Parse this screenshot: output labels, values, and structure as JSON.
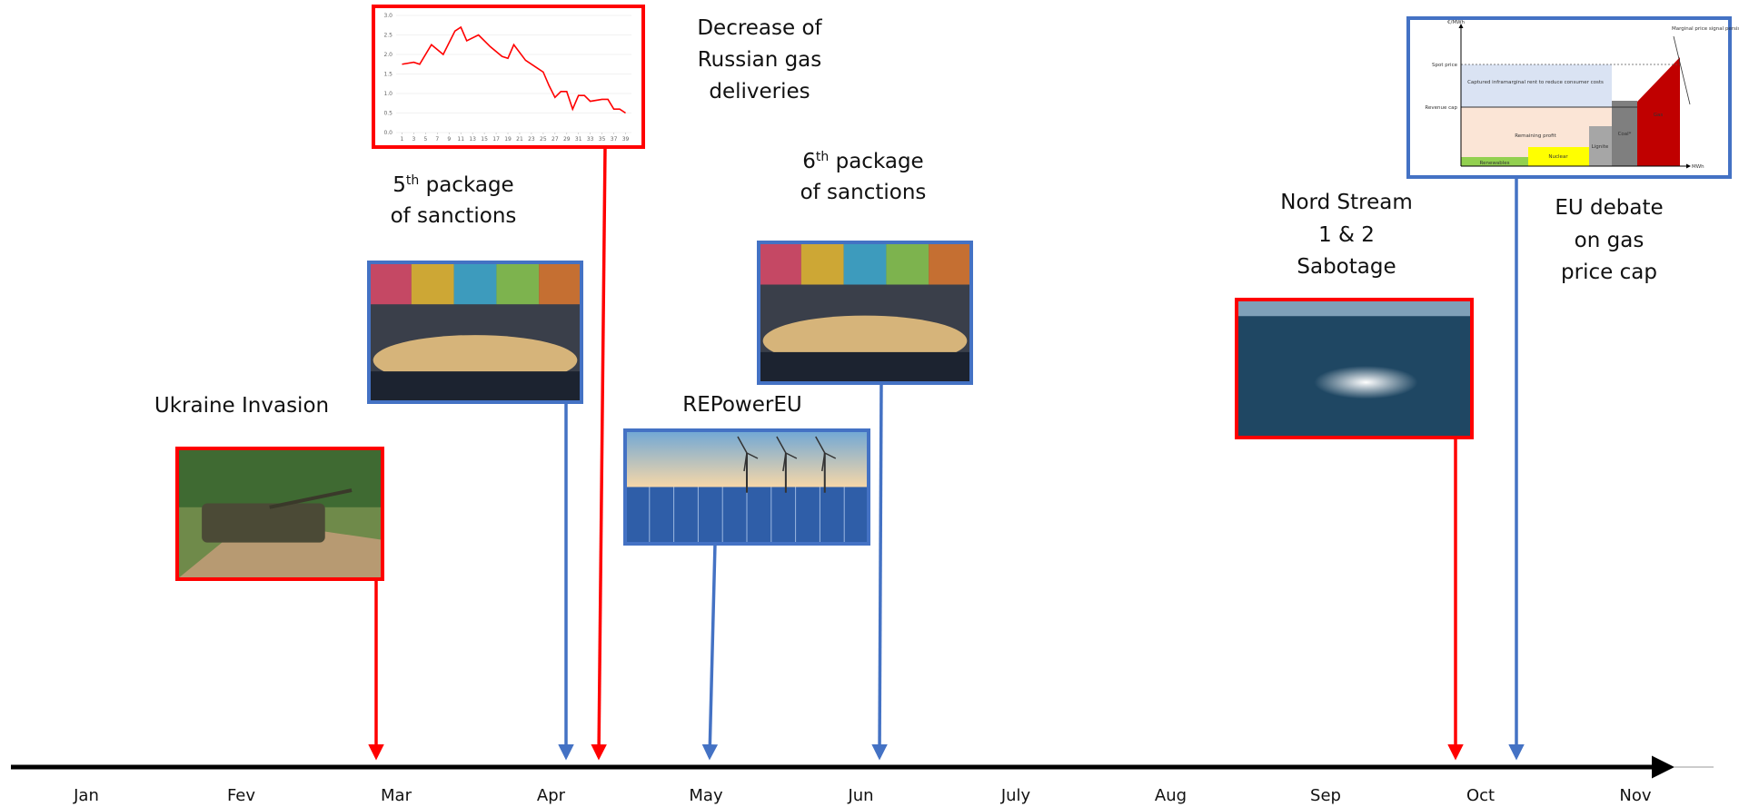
{
  "months": [
    "Jan",
    "Fev",
    "Mar",
    "Apr",
    "May",
    "Jun",
    "July",
    "Aug",
    "Sep",
    "Oct",
    "Nov"
  ],
  "events": [
    {
      "color": "#ff0000",
      "lines": [
        [
          {
            "text": "Ukraine Invasion"
          }
        ]
      ]
    },
    {
      "color": "#4472c4",
      "lines": [
        [
          {
            "text": "5"
          },
          {
            "text": "th",
            "superscript": true
          },
          {
            "text": " package"
          }
        ],
        [
          {
            "text": "of sanctions"
          }
        ]
      ]
    },
    {
      "color": "#ff0000",
      "lines": [
        [
          {
            "text": "Decrease of"
          }
        ],
        [
          {
            "text": "Russian gas"
          }
        ],
        [
          {
            "text": "deliveries"
          }
        ]
      ]
    },
    {
      "color": "#4472c4",
      "lines": [
        [
          {
            "text": "REPowerEU"
          }
        ]
      ]
    },
    {
      "color": "#4472c4",
      "lines": [
        [
          {
            "text": "6"
          },
          {
            "text": "th",
            "superscript": true
          },
          {
            "text": " package"
          }
        ],
        [
          {
            "text": "of sanctions"
          }
        ]
      ]
    },
    {
      "color": "#ff0000",
      "lines": [
        [
          {
            "text": "Nord Stream"
          }
        ],
        [
          {
            "text": "1 & 2"
          }
        ],
        [
          {
            "text": "Sabotage"
          }
        ]
      ]
    },
    {
      "color": "#4472c4",
      "lines": [
        [
          {
            "text": "EU debate"
          }
        ],
        [
          {
            "text": "on gas"
          }
        ],
        [
          {
            "text": "price cap"
          }
        ]
      ]
    }
  ],
  "gas_chart": {
    "color": "#ff0000",
    "x": [
      1,
      3,
      4,
      6,
      8,
      10,
      11,
      12,
      14,
      16,
      18,
      19,
      20,
      22,
      24,
      25,
      26,
      27,
      28,
      29,
      30,
      31,
      32,
      33,
      35,
      36,
      37,
      38,
      39
    ],
    "values": [
      1.75,
      1.8,
      1.75,
      2.25,
      2.0,
      2.6,
      2.7,
      2.35,
      2.5,
      2.2,
      1.95,
      1.9,
      2.25,
      1.85,
      1.65,
      1.55,
      1.2,
      0.9,
      1.05,
      1.05,
      0.6,
      0.95,
      0.95,
      0.8,
      0.85,
      0.85,
      0.6,
      0.6,
      0.5
    ],
    "xlim": [
      0,
      40
    ],
    "ylim": [
      0,
      3
    ],
    "xticks": [
      1,
      3,
      5,
      7,
      9,
      11,
      13,
      15,
      17,
      19,
      21,
      23,
      25,
      27,
      29,
      31,
      33,
      35,
      37,
      39
    ],
    "yticks": [
      {
        "value": 0,
        "label": "0.0"
      },
      {
        "value": 0.5,
        "label": "0.5"
      },
      {
        "value": 1,
        "label": "1.0"
      },
      {
        "value": 1.5,
        "label": "1.5"
      },
      {
        "value": 2,
        "label": "2.0"
      },
      {
        "value": 2.5,
        "label": "2.5"
      },
      {
        "value": 3,
        "label": "3.0"
      }
    ]
  },
  "price_cap_figure": {
    "y_axis": "€/MWh",
    "x_axis": "MWh",
    "spot_price": "Spot price",
    "revenue_cap": "Revenue cap",
    "captured": "Captured inframarginal rent to reduce consumer costs",
    "remaining": "Remaining profit",
    "renewables": "Renewables",
    "nuclear": "Nuclear",
    "lignite": "Lignite",
    "coal": "Coal*",
    "gas": "Gas",
    "signal": "Marginal price signal persists"
  }
}
